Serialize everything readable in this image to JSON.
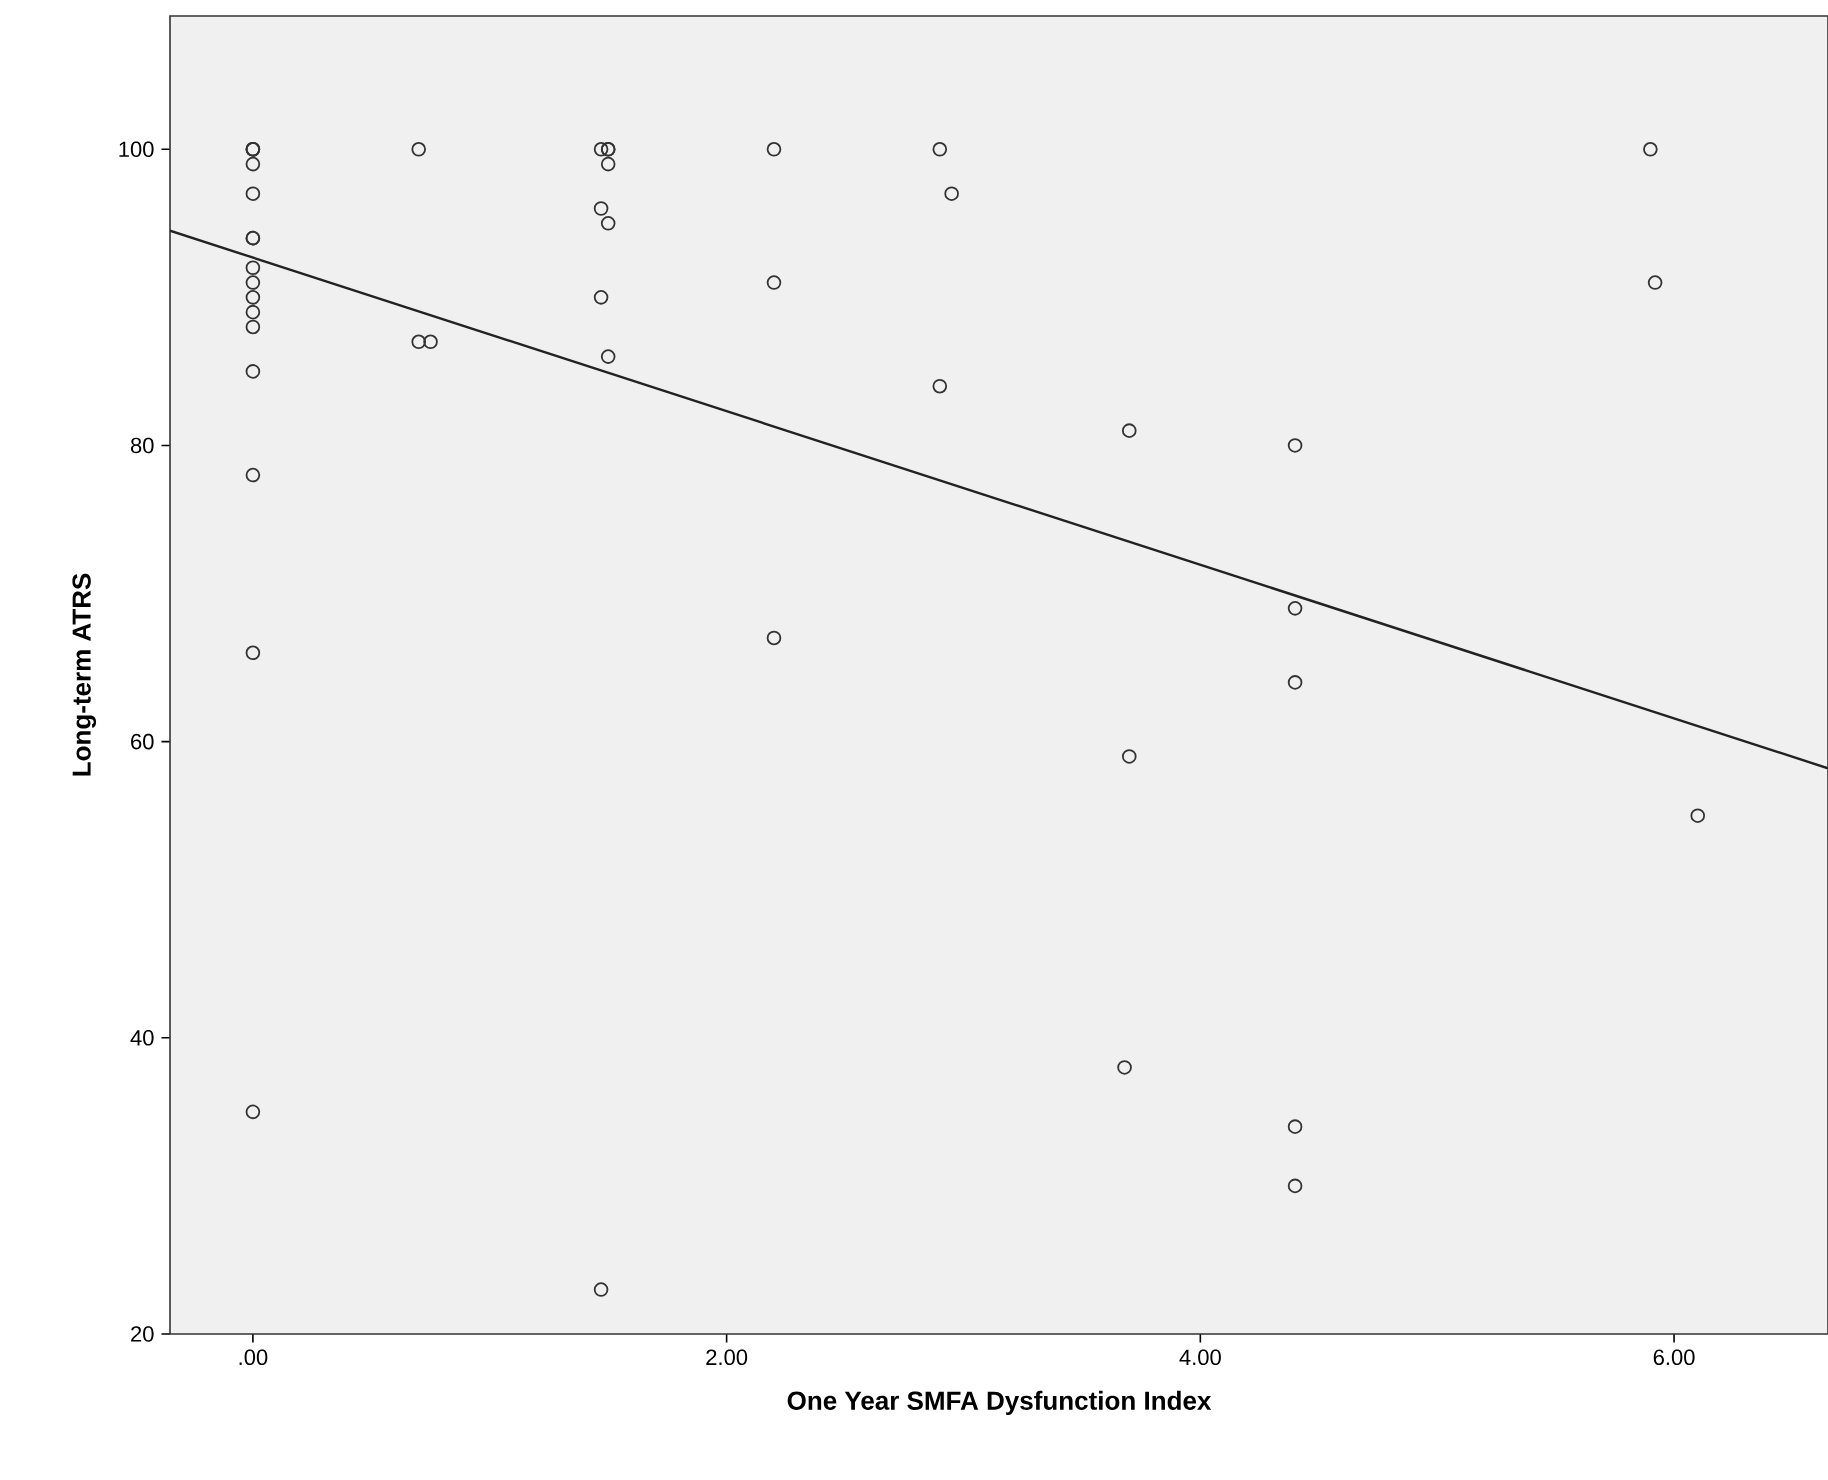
{
  "chart_data": {
    "type": "scatter",
    "xlabel": "One Year SMFA Dysfunction Index",
    "ylabel": "Long-term ATRS",
    "xlim": [
      -0.35,
      6.65
    ],
    "ylim": [
      20,
      109
    ],
    "xticks": [
      {
        "value": 0,
        "label": ".00"
      },
      {
        "value": 2,
        "label": "2.00"
      },
      {
        "value": 4,
        "label": "4.00"
      },
      {
        "value": 6,
        "label": "6.00"
      }
    ],
    "yticks": [
      20,
      40,
      60,
      80,
      100
    ],
    "grid": false,
    "marker": "circle",
    "series": [
      {
        "color": "#333333",
        "x": [
          0,
          0,
          0,
          0,
          0,
          0,
          0,
          0,
          0,
          0,
          0,
          0,
          0,
          0,
          0,
          0,
          0.7,
          0.7,
          0.75,
          1.47,
          1.47,
          1.47,
          1.47,
          1.5,
          1.5,
          1.5,
          1.5,
          1.5,
          2.2,
          2.2,
          2.2,
          2.9,
          2.9,
          2.95,
          3.7,
          3.7,
          3.68,
          4.4,
          4.4,
          4.4,
          4.4,
          4.4,
          5.9,
          5.92,
          6.1
        ],
        "values": [
          100,
          100,
          100,
          99,
          97,
          94,
          94,
          92,
          91,
          90,
          89,
          88,
          85,
          78,
          66,
          35,
          100,
          87,
          87,
          100,
          96,
          90,
          23,
          100,
          100,
          99,
          95,
          86,
          100,
          91,
          67,
          100,
          84,
          97,
          81,
          59,
          38,
          80,
          69,
          64,
          34,
          30,
          100,
          91,
          55
        ]
      },
      {
        "type": "line",
        "marker": "none",
        "color": "#222222",
        "x": [
          -0.35,
          6.65
        ],
        "values": [
          94.5,
          58.2
        ]
      }
    ]
  }
}
